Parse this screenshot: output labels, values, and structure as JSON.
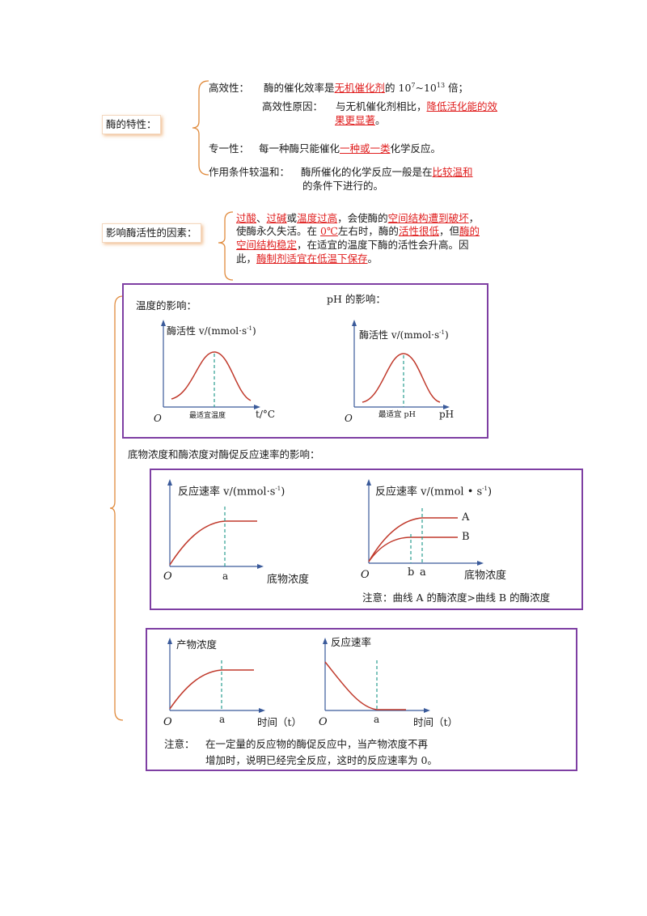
{
  "section1": {
    "label": "酶的特性：",
    "gaoxiao_title": "高效性：",
    "gaoxiao_text_a": "酶的催化效率是",
    "gaoxiao_red": "无机催化剂",
    "gaoxiao_text_b": "的 10",
    "gaoxiao_sup1": "7",
    "gaoxiao_tilde": "~10",
    "gaoxiao_sup2": "13",
    "gaoxiao_text_c": " 倍；",
    "reason_title": "高效性原因：",
    "reason_text": "与无机催化剂相比，",
    "reason_red1": "降低活化能的效",
    "reason_red2": "果更显著",
    "reason_end": "。",
    "zhuanyi_title": "专一性：",
    "zhuanyi_text": "每一种酶只能催化",
    "zhuanyi_red": "一种或一类",
    "zhuanyi_end": "化学反应。",
    "wenhe_title": "作用条件较温和：",
    "wenhe_text": "酶所催化的化学反应一般是在",
    "wenhe_red": "比较温和",
    "wenhe_line2": "的条件下进行的。"
  },
  "section2": {
    "label": "影响酶活性的因素：",
    "l1_red1": "过酸",
    "l1_t1": "、",
    "l1_red2": "过碱",
    "l1_t2": "或",
    "l1_red3": "温度过高",
    "l1_t3": "，会使酶的",
    "l1_red4": "空间结构遭到破坏",
    "l1_t4": "，",
    "l2_t1": "使酶永久失活。在 ",
    "l2_red1": "0℃",
    "l2_t2": "左右时，酶的",
    "l2_red2": "活性很低",
    "l2_t3": "，但",
    "l2_red3": "酶的",
    "l3_red1": "空间结构稳定",
    "l3_t1": "，在适宜的温度下酶的活性会升高。因",
    "l4_t1": "此，",
    "l4_red1": "酶制剂适宜在低温下保存",
    "l4_t2": "。"
  },
  "box1": {
    "temp_title": "温度的影响：",
    "ph_title": "pH 的影响：",
    "temp_ylabel": "酶活性 v/(mmol·s",
    "temp_ylabel_sup": "-1",
    "temp_ylabel_end": ")",
    "temp_origin": "O",
    "temp_opt": "最适宜温度",
    "temp_xlabel": "t/°C",
    "ph_ylabel": "酶活性 v/(mmol·s",
    "ph_ylabel_sup": "-1",
    "ph_ylabel_end": ")",
    "ph_origin": "O",
    "ph_opt": "最适宜 pH",
    "ph_xlabel": "pH"
  },
  "mid_title": "底物浓度和酶浓度对酶促反应速率的影响：",
  "box2": {
    "left_ylabel": "反应速率 v/(mmol·s",
    "left_ylabel_sup": "-1",
    "left_ylabel_end": ")",
    "left_origin": "O",
    "left_a": "a",
    "left_xlabel": "底物浓度",
    "right_ylabel": "反应速率 v/(mmol • s",
    "right_ylabel_sup": "-1",
    "right_ylabel_end": ")",
    "right_origin": "O",
    "right_b": "b",
    "right_a": "a",
    "right_xlabel": "底物浓度",
    "curve_A": "A",
    "curve_B": "B",
    "note": "注意：曲线 A 的酶浓度>曲线 B 的酶浓度"
  },
  "box3": {
    "left_ylabel": "产物浓度",
    "left_origin": "O",
    "left_a": "a",
    "left_xlabel": "时间（t）",
    "right_ylabel": "反应速率",
    "right_origin": "O",
    "right_a": "a",
    "right_xlabel": "时间（t）",
    "note_label": "注意：",
    "note_line1": "在一定量的反应物的酶促反应中，当产物浓度不再",
    "note_line2": "增加时，说明已经完全反应，这时的反应速率为 0。"
  }
}
